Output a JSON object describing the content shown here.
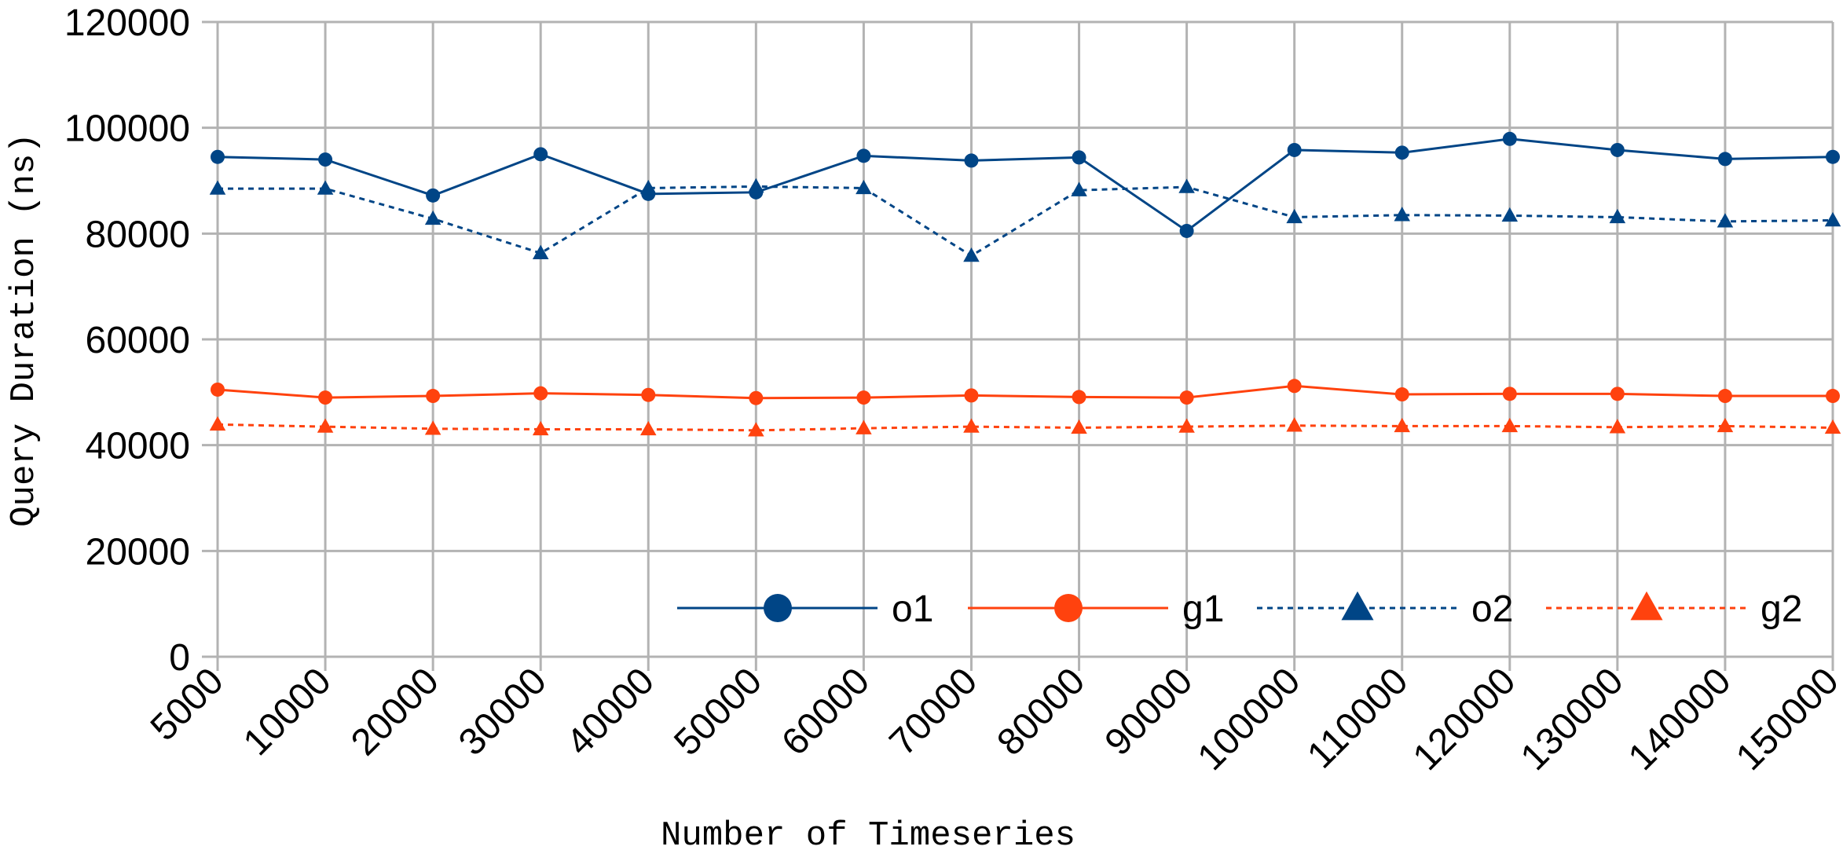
{
  "chart_data": {
    "type": "line",
    "title": "",
    "xlabel": "Number of Timeseries",
    "ylabel": "Query Duration (ns)",
    "categories": [
      "5000",
      "10000",
      "20000",
      "30000",
      "40000",
      "50000",
      "60000",
      "70000",
      "80000",
      "90000",
      "100000",
      "110000",
      "120000",
      "130000",
      "140000",
      "150000"
    ],
    "y_ticks": [
      "0",
      "20000",
      "40000",
      "60000",
      "80000",
      "100000",
      "120000"
    ],
    "ylim": [
      0,
      120000
    ],
    "grid": true,
    "legend_position": "bottom-right inside",
    "series": [
      {
        "name": "o1",
        "color": "#004586",
        "line_style": "solid",
        "marker": "circle",
        "values": [
          94500,
          94000,
          87200,
          95000,
          87500,
          87800,
          94700,
          93800,
          94400,
          80500,
          95800,
          95300,
          97900,
          95800,
          94100,
          94500
        ]
      },
      {
        "name": "g1",
        "color": "#ff420e",
        "line_style": "solid",
        "marker": "circle",
        "values": [
          50500,
          49000,
          49300,
          49800,
          49500,
          48900,
          49000,
          49400,
          49100,
          49000,
          51200,
          49600,
          49700,
          49700,
          49300,
          49300
        ]
      },
      {
        "name": "o2",
        "color": "#004586",
        "line_style": "dotted",
        "marker": "triangle",
        "values": [
          88500,
          88500,
          82800,
          76300,
          88600,
          88900,
          88600,
          75800,
          88200,
          88800,
          83100,
          83500,
          83400,
          83100,
          82300,
          82500
        ]
      },
      {
        "name": "g2",
        "color": "#ff420e",
        "line_style": "dotted",
        "marker": "triangle",
        "values": [
          43900,
          43500,
          43100,
          43000,
          43000,
          42800,
          43200,
          43500,
          43300,
          43500,
          43700,
          43600,
          43600,
          43400,
          43600,
          43300
        ]
      }
    ]
  }
}
